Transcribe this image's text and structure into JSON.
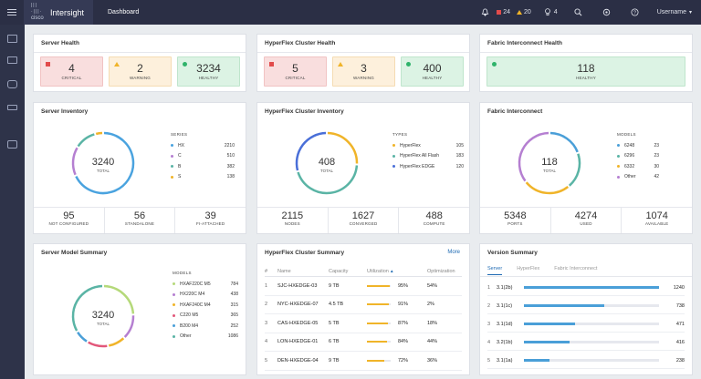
{
  "topbar": {
    "brand_small": "cisco",
    "brand": "Intersight",
    "page": "Dashboard",
    "critical_count": "24",
    "warning_count": "20",
    "tips_count": "4",
    "username": "Username",
    "colors": {
      "bg": "#2b2f45",
      "critical": "#e24b4b",
      "warning": "#f0b429"
    }
  },
  "sidebar": {
    "icons": [
      "dashboard-icon",
      "server-icon",
      "hyperflex-icon",
      "fabric-icon",
      "storage-icon"
    ]
  },
  "server_health": {
    "title": "Server Health",
    "items": [
      {
        "value": "4",
        "label": "CRITICAL"
      },
      {
        "value": "2",
        "label": "WARNING"
      },
      {
        "value": "3234",
        "label": "HEALTHY"
      }
    ]
  },
  "hx_health": {
    "title": "HyperFlex Cluster Health",
    "items": [
      {
        "value": "5",
        "label": "CRITICAL"
      },
      {
        "value": "3",
        "label": "WARNING"
      },
      {
        "value": "400",
        "label": "HEALTHY"
      }
    ]
  },
  "fi_health": {
    "title": "Fabric Interconnect Health",
    "items": [
      {
        "value": "118",
        "label": "HEALTHY"
      }
    ]
  },
  "server_inventory": {
    "title": "Server Inventory",
    "total": "3240",
    "total_label": "TOTAL",
    "legend_title": "SERIES",
    "legend": [
      {
        "name": "HX",
        "value": "2210",
        "color": "#4aa3df"
      },
      {
        "name": "C",
        "value": "510",
        "color": "#b57fd1"
      },
      {
        "name": "B",
        "value": "382",
        "color": "#5ab4a5"
      },
      {
        "name": "S",
        "value": "138",
        "color": "#f0b429"
      }
    ],
    "stats": [
      {
        "value": "95",
        "label": "NOT CONFIGURED"
      },
      {
        "value": "56",
        "label": "STANDALONE"
      },
      {
        "value": "39",
        "label": "FI-ATTACHED"
      }
    ]
  },
  "hx_inventory": {
    "title": "HyperFlex Cluster Inventory",
    "total": "408",
    "total_label": "TOTAL",
    "legend_title": "TYPES",
    "legend": [
      {
        "name": "HyperFlex",
        "value": "105",
        "color": "#f0b429"
      },
      {
        "name": "HyperFlex All Flash",
        "value": "183",
        "color": "#5ab4a5"
      },
      {
        "name": "HyperFlex EDGE",
        "value": "120",
        "color": "#4a6fd8"
      }
    ],
    "stats": [
      {
        "value": "2115",
        "label": "NODES"
      },
      {
        "value": "1627",
        "label": "CONVERGED"
      },
      {
        "value": "488",
        "label": "COMPUTE"
      }
    ]
  },
  "fi_panel": {
    "title": "Fabric Interconnect",
    "total": "118",
    "total_label": "TOTAL",
    "legend_title": "MODELS",
    "legend": [
      {
        "name": "6248",
        "value": "23",
        "color": "#4a9fd8"
      },
      {
        "name": "6296",
        "value": "23",
        "color": "#5ab4a5"
      },
      {
        "name": "6332",
        "value": "30",
        "color": "#f0b429"
      },
      {
        "name": "Other",
        "value": "42",
        "color": "#b57fd1"
      }
    ],
    "stats": [
      {
        "value": "5348",
        "label": "PORTS"
      },
      {
        "value": "4274",
        "label": "USED"
      },
      {
        "value": "1074",
        "label": "AVAILABLE"
      }
    ]
  },
  "model_summary": {
    "title": "Server Model Summary",
    "total": "3240",
    "total_label": "TOTAL",
    "legend_title": "MODELS",
    "legend": [
      {
        "name": "HXAF220C M5",
        "value": "784",
        "color": "#b5d97a"
      },
      {
        "name": "HX220C M4",
        "value": "438",
        "color": "#b57fd1"
      },
      {
        "name": "HXAF240C M4",
        "value": "315",
        "color": "#f0b429"
      },
      {
        "name": "C220 M5",
        "value": "365",
        "color": "#e2577a"
      },
      {
        "name": "B200 M4",
        "value": "252",
        "color": "#4a9fd8"
      },
      {
        "name": "Other",
        "value": "1086",
        "color": "#5ab4a5"
      }
    ]
  },
  "hx_summary": {
    "title": "HyperFlex Cluster Summary",
    "more": "More",
    "headers": [
      "#",
      "Name",
      "Capacity",
      "Utilization",
      "Optimization"
    ],
    "rows": [
      {
        "i": "1",
        "name": "SJC-HXEDGE-03",
        "cap": "9 TB",
        "util": "95%",
        "util_frac": 0.95,
        "opt": "54%"
      },
      {
        "i": "2",
        "name": "NYC-HXEDGE-07",
        "cap": "4.5 TB",
        "util": "91%",
        "util_frac": 0.91,
        "opt": "2%"
      },
      {
        "i": "3",
        "name": "CAS-HXEDGE-05",
        "cap": "5 TB",
        "util": "87%",
        "util_frac": 0.87,
        "opt": "18%"
      },
      {
        "i": "4",
        "name": "LON-HXEDGE-01",
        "cap": "6 TB",
        "util": "84%",
        "util_frac": 0.84,
        "opt": "44%"
      },
      {
        "i": "5",
        "name": "DEN-HXEDGE-04",
        "cap": "9 TB",
        "util": "72%",
        "util_frac": 0.72,
        "opt": "36%"
      }
    ]
  },
  "version_summary": {
    "title": "Version Summary",
    "tabs": [
      "Server",
      "HyperFlex",
      "Fabric Interconnect"
    ],
    "rows": [
      {
        "i": "1",
        "name": "3.1(2b)",
        "value": "1240",
        "frac": 1.0
      },
      {
        "i": "2",
        "name": "3.1(1c)",
        "value": "738",
        "frac": 0.595
      },
      {
        "i": "3",
        "name": "3.1(1d)",
        "value": "471",
        "frac": 0.38
      },
      {
        "i": "4",
        "name": "3.2(1b)",
        "value": "416",
        "frac": 0.335
      },
      {
        "i": "5",
        "name": "3.1(1a)",
        "value": "238",
        "frac": 0.19
      }
    ]
  }
}
